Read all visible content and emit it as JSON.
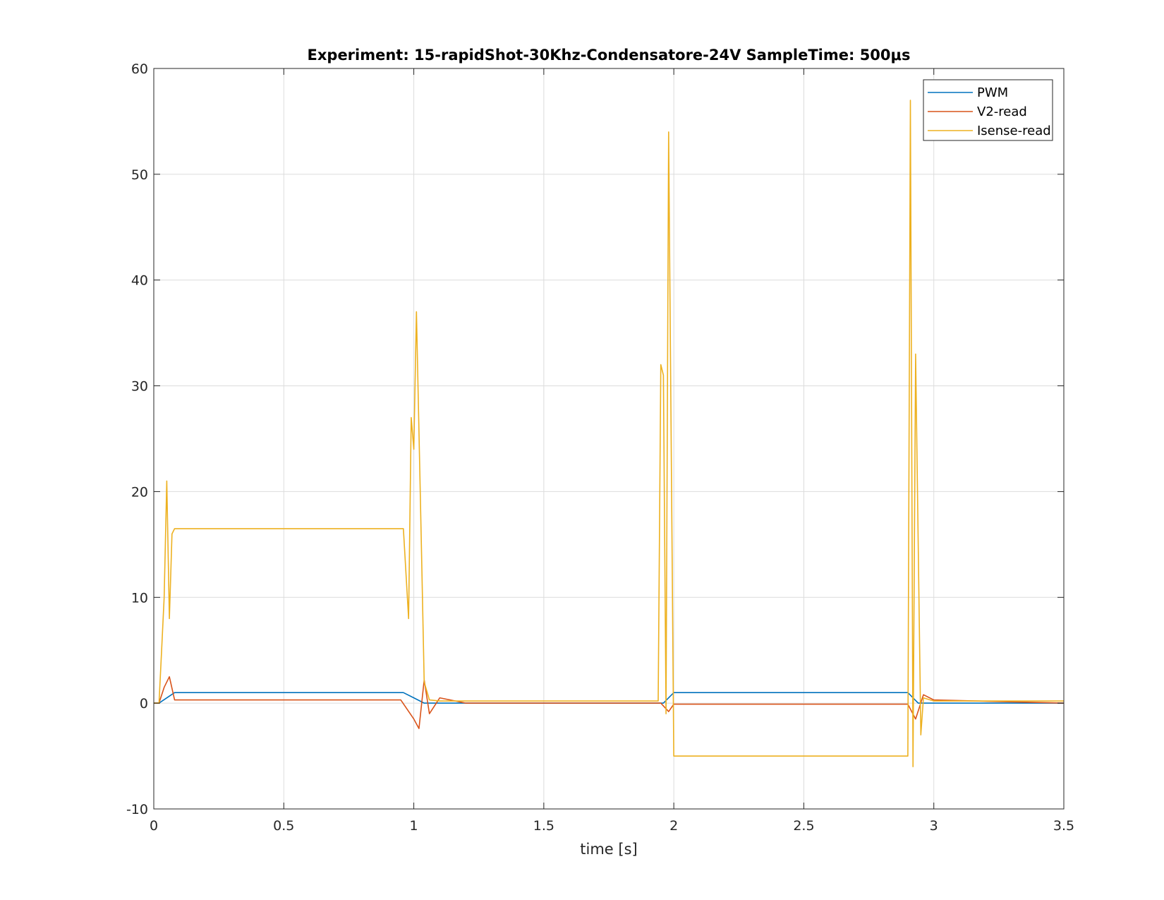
{
  "chart_data": {
    "type": "line",
    "title": "Experiment: 15-rapidShot-30Khz-Condensatore-24V   SampleTime: 500μs",
    "xlabel": "time [s]",
    "ylabel": "",
    "xlim": [
      0,
      3.5
    ],
    "ylim": [
      -10,
      60
    ],
    "xticks": [
      0,
      0.5,
      1,
      1.5,
      2,
      2.5,
      3,
      3.5
    ],
    "xtick_labels": [
      "0",
      "0.5",
      "1",
      "1.5",
      "2",
      "2.5",
      "3",
      "3.5"
    ],
    "yticks": [
      -10,
      0,
      10,
      20,
      30,
      40,
      50,
      60
    ],
    "ytick_labels": [
      "-10",
      "0",
      "10",
      "20",
      "30",
      "40",
      "50",
      "60"
    ],
    "grid": true,
    "legend_position": "top-right",
    "series": [
      {
        "name": "PWM",
        "color": "#0072BD",
        "x": [
          0,
          0.02,
          0.08,
          0.96,
          1.0,
          1.04,
          1.96,
          2.0,
          2.04,
          2.9,
          2.94,
          3.5
        ],
        "y": [
          0,
          0,
          1,
          1,
          0.5,
          0,
          0,
          1,
          1,
          1,
          0,
          0
        ]
      },
      {
        "name": "V2-read",
        "color": "#D95319",
        "x": [
          0,
          0.02,
          0.04,
          0.06,
          0.08,
          0.2,
          0.5,
          0.95,
          1.0,
          1.02,
          1.04,
          1.06,
          1.1,
          1.2,
          1.95,
          1.98,
          2.0,
          2.5,
          2.9,
          2.93,
          2.96,
          3.0,
          3.5
        ],
        "y": [
          0,
          0,
          1.5,
          2.5,
          0.3,
          0.3,
          0.3,
          0.3,
          -1.5,
          -2.4,
          2.2,
          -1.0,
          0.5,
          0,
          0,
          -0.8,
          -0.1,
          -0.1,
          -0.1,
          -1.5,
          0.8,
          0.3,
          0
        ]
      },
      {
        "name": "Isense-read",
        "color": "#EDB120",
        "x": [
          0,
          0.02,
          0.03,
          0.04,
          0.05,
          0.06,
          0.07,
          0.08,
          0.1,
          0.3,
          0.5,
          0.7,
          0.96,
          0.98,
          0.99,
          1.0,
          1.01,
          1.03,
          1.04,
          1.06,
          1.1,
          1.5,
          1.94,
          1.95,
          1.96,
          1.97,
          1.98,
          2.0,
          2.5,
          2.9,
          2.91,
          2.92,
          2.93,
          2.95,
          2.96,
          3.0,
          3.5
        ],
        "y": [
          0,
          0,
          5,
          10,
          21,
          8,
          16,
          16.5,
          16.5,
          16.5,
          16.5,
          16.5,
          16.5,
          8,
          27,
          24,
          37,
          14,
          2,
          0.3,
          0.2,
          0.2,
          0.2,
          32,
          31,
          -1,
          54,
          -5,
          -5,
          -5,
          57,
          -6,
          33,
          -3,
          0.5,
          0.2,
          0.2
        ]
      }
    ]
  }
}
